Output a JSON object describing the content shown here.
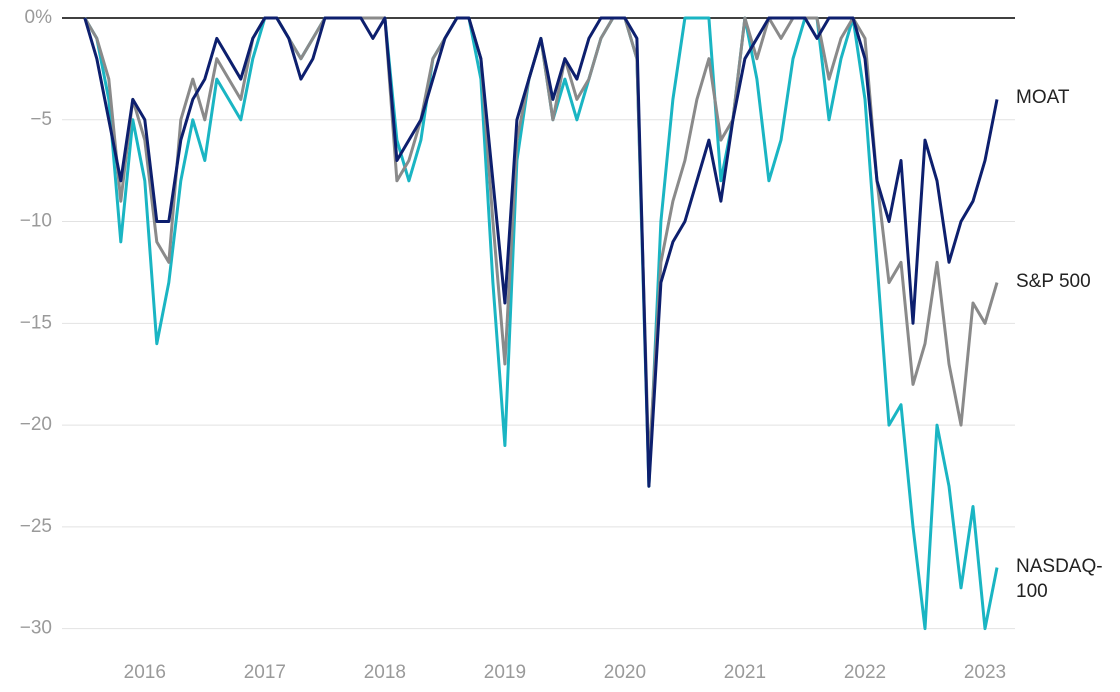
{
  "chart_data": {
    "type": "line",
    "x": [
      2015.5,
      2015.6,
      2015.7,
      2015.8,
      2015.9,
      2016.0,
      2016.1,
      2016.2,
      2016.3,
      2016.4,
      2016.5,
      2016.6,
      2016.7,
      2016.8,
      2016.9,
      2017.0,
      2017.1,
      2017.2,
      2017.3,
      2017.4,
      2017.5,
      2017.6,
      2017.7,
      2017.8,
      2017.9,
      2018.0,
      2018.1,
      2018.2,
      2018.3,
      2018.4,
      2018.5,
      2018.6,
      2018.7,
      2018.8,
      2018.9,
      2019.0,
      2019.1,
      2019.2,
      2019.3,
      2019.4,
      2019.5,
      2019.6,
      2019.7,
      2019.8,
      2019.9,
      2020.0,
      2020.1,
      2020.2,
      2020.3,
      2020.4,
      2020.5,
      2020.6,
      2020.7,
      2020.8,
      2020.9,
      2021.0,
      2021.1,
      2021.2,
      2021.3,
      2021.4,
      2021.5,
      2021.6,
      2021.7,
      2021.8,
      2021.9,
      2022.0,
      2022.1,
      2022.2,
      2022.3,
      2022.4,
      2022.5,
      2022.6,
      2022.7,
      2022.8,
      2022.9,
      2023.0,
      2023.1
    ],
    "series": [
      {
        "name": "NASDAQ-100",
        "color": "#1ab5c3",
        "values": [
          0,
          -1,
          -4,
          -11,
          -5,
          -8,
          -16,
          -13,
          -8,
          -5,
          -7,
          -3,
          -4,
          -5,
          -2,
          0,
          0,
          -1,
          -2,
          -1,
          0,
          0,
          0,
          0,
          0,
          0,
          -6,
          -8,
          -6,
          -2,
          -1,
          0,
          0,
          -3,
          -13,
          -21,
          -7,
          -3,
          -1,
          -5,
          -3,
          -5,
          -3,
          -1,
          0,
          0,
          -2,
          -23,
          -10,
          -4,
          0,
          0,
          0,
          -8,
          -5,
          0,
          -3,
          -8,
          -6,
          -2,
          0,
          0,
          -5,
          -2,
          0,
          -4,
          -12,
          -20,
          -19,
          -25,
          -30,
          -20,
          -23,
          -28,
          -24,
          -30,
          -27
        ]
      },
      {
        "name": "S&P 500",
        "color": "#8a8a8a",
        "values": [
          0,
          -1,
          -3,
          -9,
          -4,
          -6,
          -11,
          -12,
          -5,
          -3,
          -5,
          -2,
          -3,
          -4,
          -1,
          0,
          0,
          -1,
          -2,
          -1,
          0,
          0,
          0,
          0,
          0,
          0,
          -8,
          -7,
          -5,
          -2,
          -1,
          0,
          0,
          -2,
          -10,
          -17,
          -6,
          -3,
          -1,
          -5,
          -2,
          -4,
          -3,
          -1,
          0,
          0,
          -2,
          -22,
          -12,
          -9,
          -7,
          -4,
          -2,
          -6,
          -5,
          0,
          -2,
          0,
          -1,
          0,
          0,
          0,
          -3,
          -1,
          0,
          -1,
          -8,
          -13,
          -12,
          -18,
          -16,
          -12,
          -17,
          -20,
          -14,
          -15,
          -13
        ]
      },
      {
        "name": "MOAT",
        "color": "#0d1f6e",
        "values": [
          0,
          -2,
          -5,
          -8,
          -4,
          -5,
          -10,
          -10,
          -6,
          -4,
          -3,
          -1,
          -2,
          -3,
          -1,
          0,
          0,
          -1,
          -3,
          -2,
          0,
          0,
          0,
          0,
          -1,
          0,
          -7,
          -6,
          -5,
          -3,
          -1,
          0,
          0,
          -2,
          -8,
          -14,
          -5,
          -3,
          -1,
          -4,
          -2,
          -3,
          -1,
          0,
          0,
          0,
          -1,
          -23,
          -13,
          -11,
          -10,
          -8,
          -6,
          -9,
          -5,
          -2,
          -1,
          0,
          0,
          0,
          0,
          -1,
          0,
          0,
          0,
          -2,
          -8,
          -10,
          -7,
          -15,
          -6,
          -8,
          -12,
          -10,
          -9,
          -7,
          -4
        ]
      }
    ],
    "xlim": [
      2015.31,
      2023.25
    ],
    "xticks": [
      2016,
      2017,
      2018,
      2019,
      2020,
      2021,
      2022,
      2023
    ],
    "ylim": [
      -31,
      0
    ],
    "yticks": [
      {
        "value": 0,
        "label": "0%"
      },
      {
        "value": -5,
        "label": "−5"
      },
      {
        "value": -10,
        "label": "−10"
      },
      {
        "value": -15,
        "label": "−15"
      },
      {
        "value": -20,
        "label": "−20"
      },
      {
        "value": -25,
        "label": "−25"
      },
      {
        "value": -30,
        "label": "−30"
      }
    ],
    "grid": true
  }
}
